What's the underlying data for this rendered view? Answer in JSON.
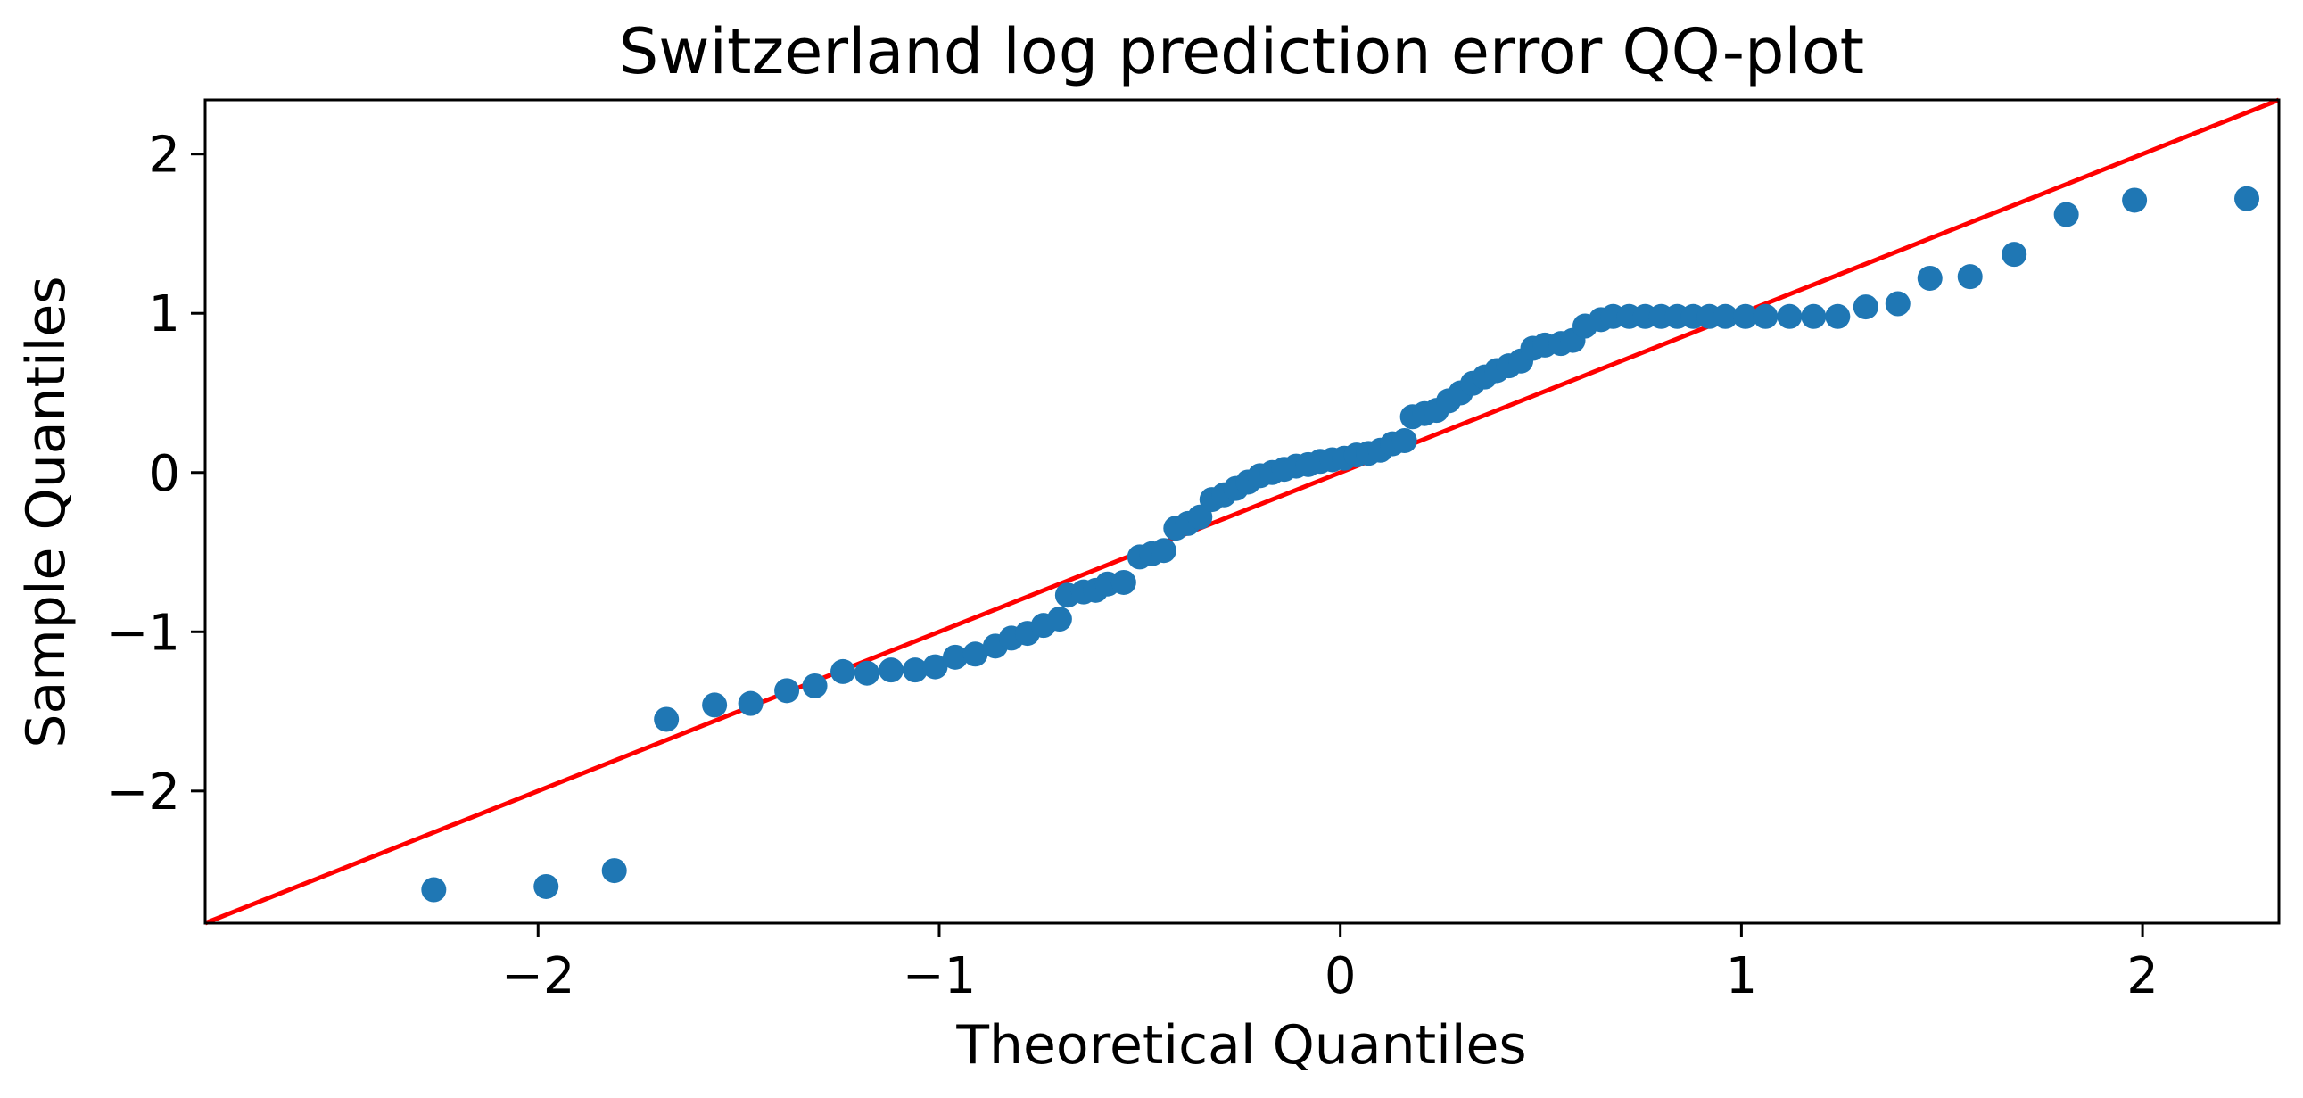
{
  "chart_data": {
    "type": "scatter",
    "title": "Switzerland log prediction error QQ-plot",
    "xlabel": "Theoretical Quantiles",
    "ylabel": "Sample Quantiles",
    "xlim": [
      -2.83,
      2.34
    ],
    "ylim": [
      -2.83,
      2.34
    ],
    "xticks": [
      -2,
      -1,
      0,
      1,
      2
    ],
    "yticks": [
      -2,
      -1,
      0,
      1,
      2
    ],
    "xtick_labels": [
      "−2",
      "−1",
      "0",
      "1",
      "2"
    ],
    "ytick_labels": [
      "−2",
      "−1",
      "0",
      "1",
      "2"
    ],
    "grid": false,
    "colors": {
      "points": "#1f77b4",
      "reference_line": "#ff0000"
    },
    "series": [
      {
        "values": [
          [
            -2.26,
            -2.62
          ],
          [
            -1.98,
            -2.6
          ],
          [
            -1.81,
            -2.5
          ],
          [
            -1.68,
            -1.55
          ],
          [
            -1.56,
            -1.46
          ],
          [
            -1.47,
            -1.45
          ],
          [
            -1.38,
            -1.37
          ],
          [
            -1.31,
            -1.34
          ],
          [
            -1.24,
            -1.25
          ],
          [
            -1.18,
            -1.26
          ],
          [
            -1.12,
            -1.24
          ],
          [
            -1.06,
            -1.24
          ],
          [
            -1.01,
            -1.22
          ],
          [
            -0.96,
            -1.16
          ],
          [
            -0.91,
            -1.14
          ],
          [
            -0.86,
            -1.09
          ],
          [
            -0.82,
            -1.04
          ],
          [
            -0.78,
            -1.01
          ],
          [
            -0.74,
            -0.96
          ],
          [
            -0.7,
            -0.92
          ],
          [
            -0.68,
            -0.77
          ],
          [
            -0.64,
            -0.75
          ],
          [
            -0.61,
            -0.74
          ],
          [
            -0.58,
            -0.7
          ],
          [
            -0.54,
            -0.69
          ],
          [
            -0.5,
            -0.53
          ],
          [
            -0.47,
            -0.51
          ],
          [
            -0.44,
            -0.49
          ],
          [
            -0.41,
            -0.35
          ],
          [
            -0.38,
            -0.32
          ],
          [
            -0.35,
            -0.28
          ],
          [
            -0.32,
            -0.17
          ],
          [
            -0.29,
            -0.14
          ],
          [
            -0.26,
            -0.1
          ],
          [
            -0.23,
            -0.06
          ],
          [
            -0.2,
            -0.02
          ],
          [
            -0.17,
            0.0
          ],
          [
            -0.14,
            0.02
          ],
          [
            -0.11,
            0.04
          ],
          [
            -0.08,
            0.05
          ],
          [
            -0.05,
            0.07
          ],
          [
            -0.02,
            0.08
          ],
          [
            0.01,
            0.09
          ],
          [
            0.04,
            0.11
          ],
          [
            0.07,
            0.12
          ],
          [
            0.1,
            0.14
          ],
          [
            0.13,
            0.18
          ],
          [
            0.16,
            0.2
          ],
          [
            0.18,
            0.35
          ],
          [
            0.21,
            0.37
          ],
          [
            0.24,
            0.39
          ],
          [
            0.27,
            0.45
          ],
          [
            0.3,
            0.5
          ],
          [
            0.33,
            0.56
          ],
          [
            0.36,
            0.6
          ],
          [
            0.39,
            0.64
          ],
          [
            0.42,
            0.67
          ],
          [
            0.45,
            0.7
          ],
          [
            0.48,
            0.78
          ],
          [
            0.51,
            0.8
          ],
          [
            0.55,
            0.81
          ],
          [
            0.58,
            0.83
          ],
          [
            0.61,
            0.92
          ],
          [
            0.65,
            0.96
          ],
          [
            0.68,
            0.98
          ],
          [
            0.72,
            0.98
          ],
          [
            0.76,
            0.98
          ],
          [
            0.8,
            0.98
          ],
          [
            0.84,
            0.98
          ],
          [
            0.88,
            0.98
          ],
          [
            0.92,
            0.98
          ],
          [
            0.96,
            0.98
          ],
          [
            1.01,
            0.98
          ],
          [
            1.06,
            0.98
          ],
          [
            1.12,
            0.98
          ],
          [
            1.18,
            0.98
          ],
          [
            1.24,
            0.98
          ],
          [
            1.31,
            1.04
          ],
          [
            1.39,
            1.06
          ],
          [
            1.47,
            1.22
          ],
          [
            1.57,
            1.23
          ],
          [
            1.68,
            1.37
          ],
          [
            1.81,
            1.62
          ],
          [
            1.98,
            1.71
          ],
          [
            2.26,
            1.72
          ]
        ]
      }
    ],
    "reference_line": {
      "slope": 1,
      "intercept": 0
    }
  }
}
